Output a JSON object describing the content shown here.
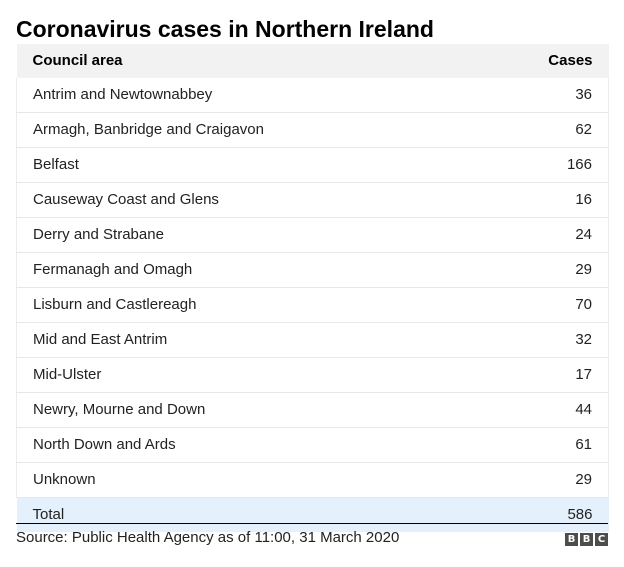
{
  "chart_data": {
    "type": "table",
    "title": "Coronavirus cases in Northern Ireland",
    "columns": [
      "Council area",
      "Cases"
    ],
    "rows": [
      {
        "area": "Antrim and Newtownabbey",
        "cases": "36"
      },
      {
        "area": "Armagh, Banbridge and Craigavon",
        "cases": "62"
      },
      {
        "area": "Belfast",
        "cases": "166"
      },
      {
        "area": "Causeway Coast and Glens",
        "cases": "16"
      },
      {
        "area": "Derry and Strabane",
        "cases": "24"
      },
      {
        "area": "Fermanagh and Omagh",
        "cases": "29"
      },
      {
        "area": "Lisburn and Castlereagh",
        "cases": "70"
      },
      {
        "area": "Mid and East Antrim",
        "cases": "32"
      },
      {
        "area": "Mid-Ulster",
        "cases": "17"
      },
      {
        "area": "Newry, Mourne and Down",
        "cases": "44"
      },
      {
        "area": "North Down and Ards",
        "cases": "61"
      },
      {
        "area": "Unknown",
        "cases": "29"
      }
    ],
    "total": {
      "label": "Total",
      "cases": "586"
    },
    "source": "Source: Public Health Agency as of 11:00, 31 March 2020",
    "logo_letters": [
      "B",
      "B",
      "C"
    ]
  },
  "colors": {
    "header_background": "#f2f2f2",
    "total_background": "#e4f0fc",
    "logo_background": "#4d4d4d"
  }
}
